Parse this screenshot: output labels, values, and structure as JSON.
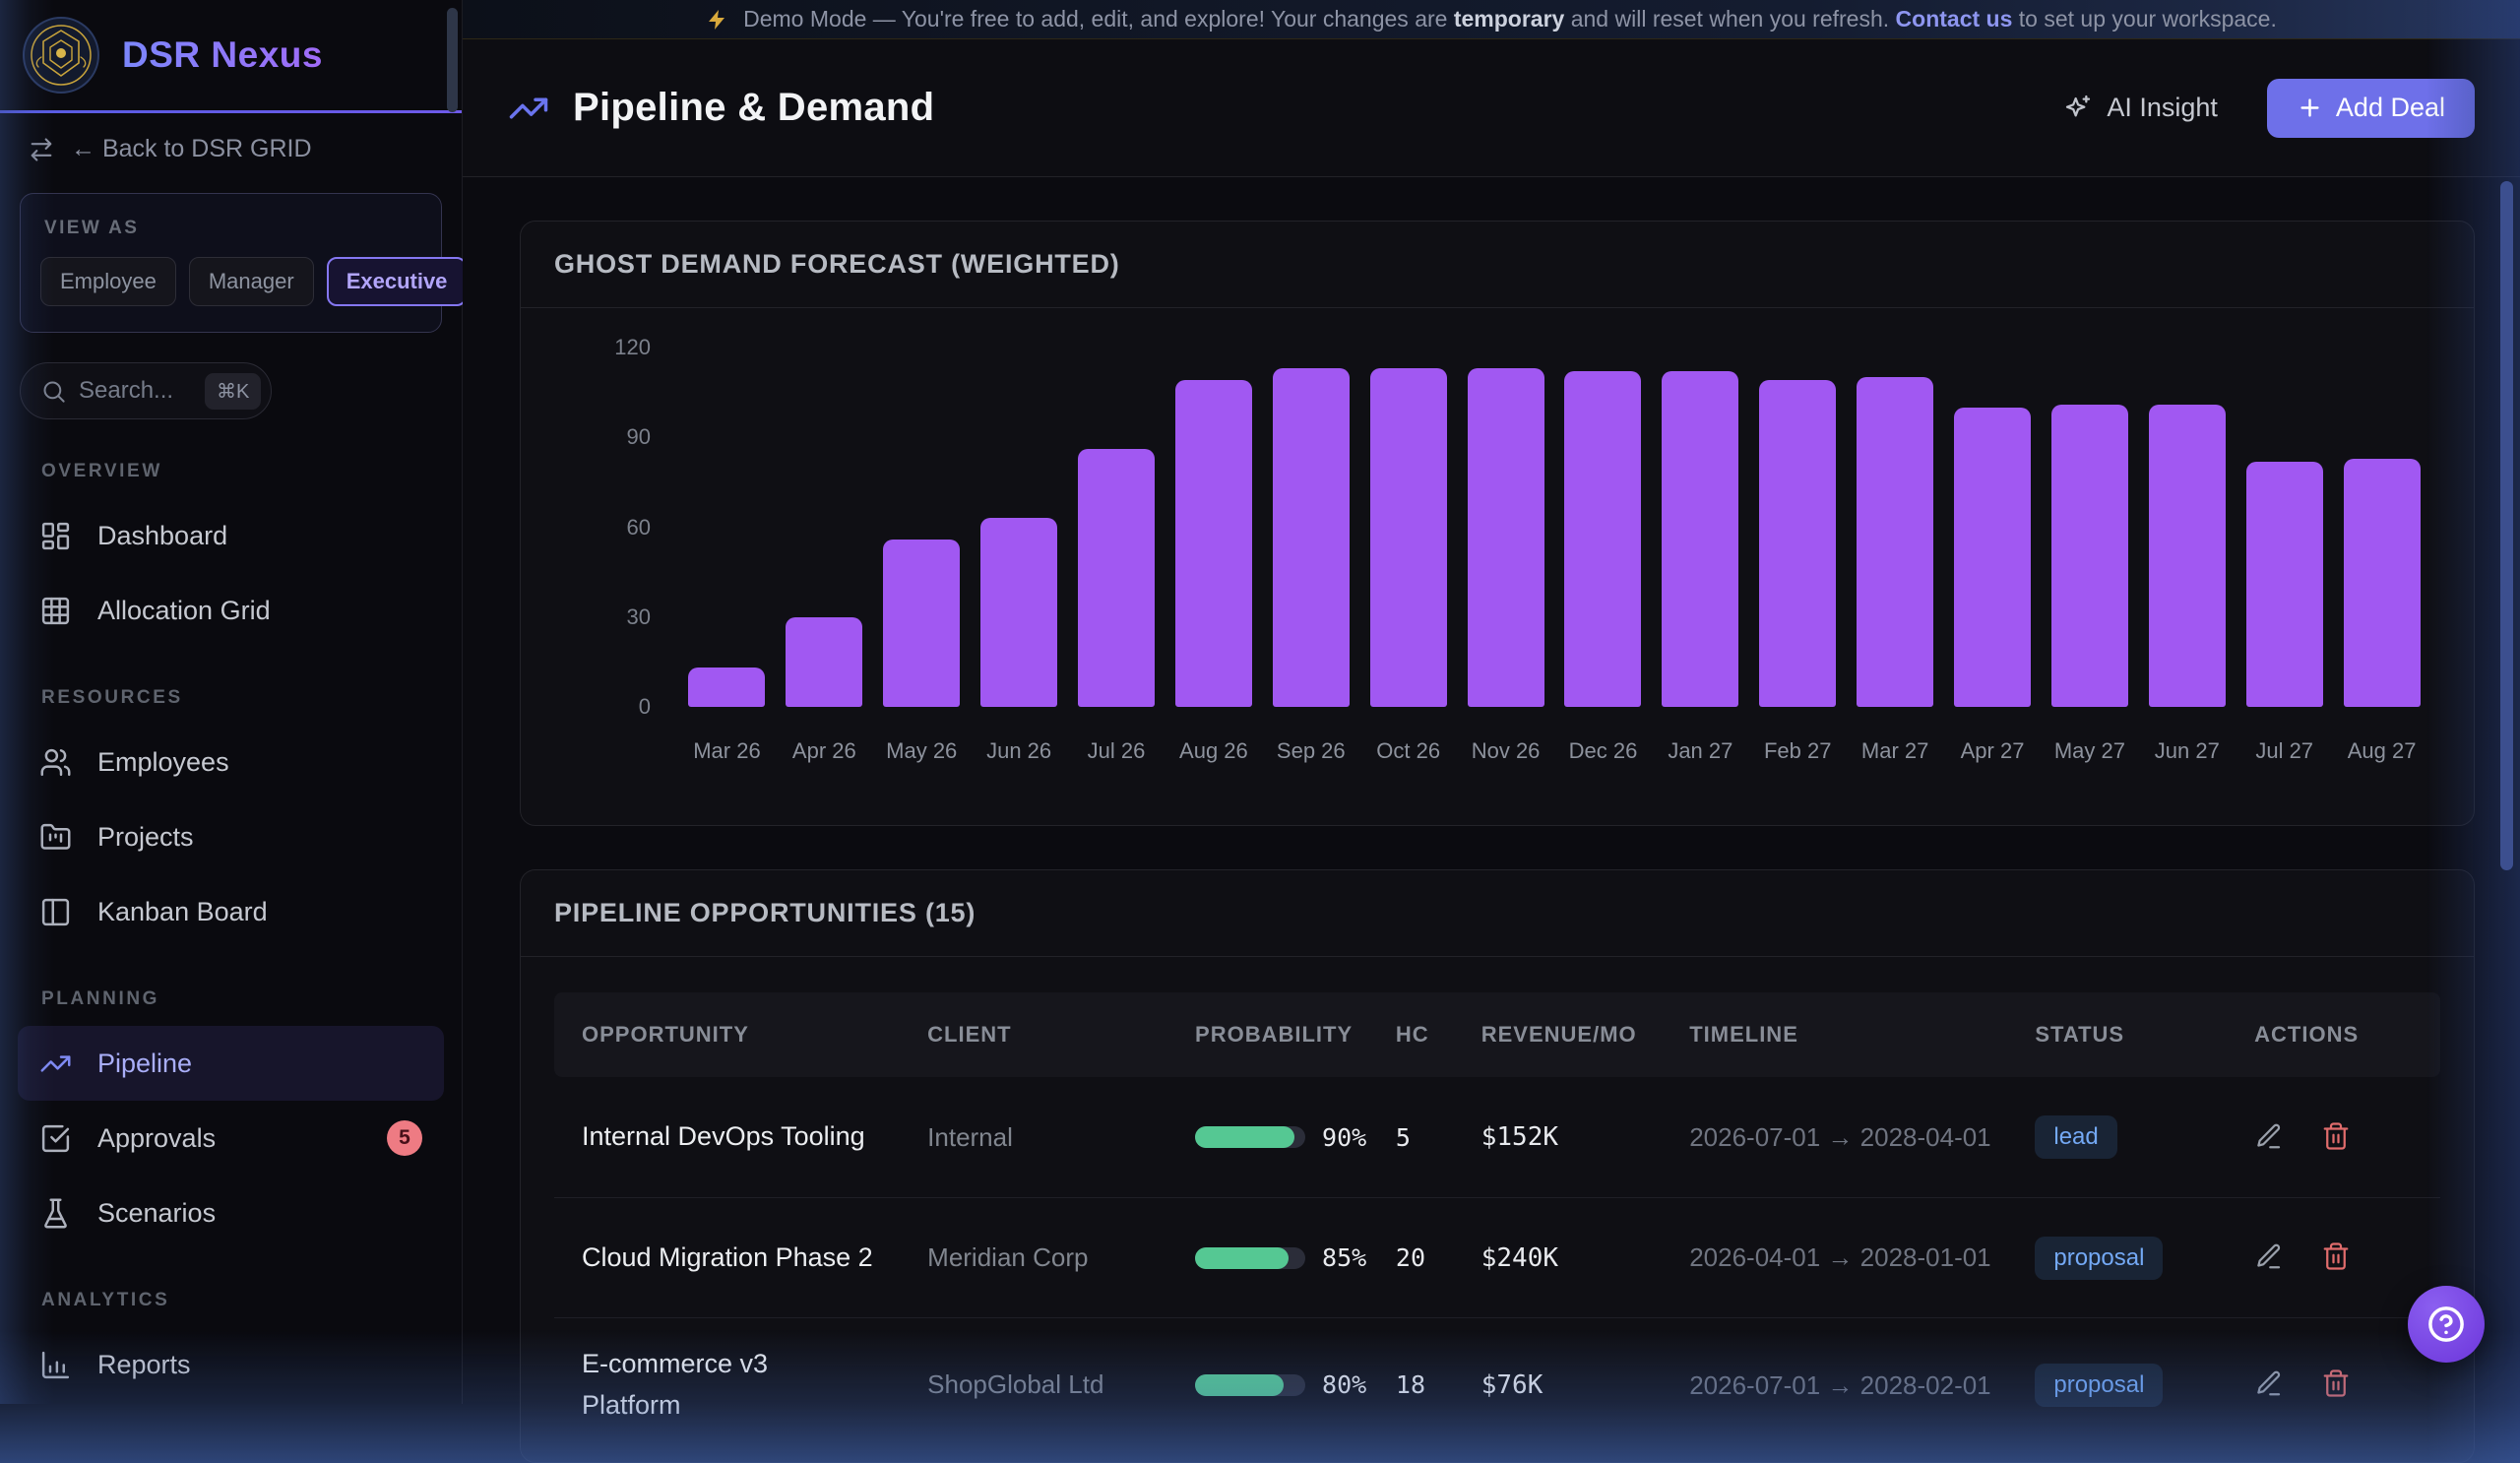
{
  "colors": {
    "accent_purple": "#8577f2",
    "bar_purple": "#a158f2",
    "progress_green": "#55c893",
    "status_blue": "#74a9f5",
    "danger_red": "#e06c6c",
    "add_deal_bg": "#6e70e9"
  },
  "banner": {
    "icon": "zap-icon",
    "prefix": "Demo Mode — You're free to add, edit, and explore! Your changes are ",
    "bold": "temporary",
    "mid": " and will reset when you refresh. ",
    "link": "Contact us",
    "suffix": " to set up your workspace."
  },
  "sidebar": {
    "brand": "DSR Nexus",
    "back_label": "← Back to DSR GRID",
    "view_as": {
      "label": "VIEW AS",
      "options": [
        "Employee",
        "Manager",
        "Executive"
      ],
      "active": "Executive"
    },
    "search": {
      "placeholder": "Search...",
      "shortcut": "⌘K"
    },
    "sections": [
      {
        "label": "OVERVIEW",
        "items": [
          {
            "label": "Dashboard",
            "icon": "layout-dashboard-icon"
          },
          {
            "label": "Allocation Grid",
            "icon": "allocation-grid-icon"
          }
        ]
      },
      {
        "label": "RESOURCES",
        "items": [
          {
            "label": "Employees",
            "icon": "users-icon"
          },
          {
            "label": "Projects",
            "icon": "folder-kanban-icon"
          },
          {
            "label": "Kanban Board",
            "icon": "kanban-icon"
          }
        ]
      },
      {
        "label": "PLANNING",
        "items": [
          {
            "label": "Pipeline",
            "icon": "trending-up-icon",
            "active": true
          },
          {
            "label": "Approvals",
            "icon": "check-square-icon",
            "badge": "5"
          },
          {
            "label": "Scenarios",
            "icon": "flask-icon"
          }
        ]
      },
      {
        "label": "ANALYTICS",
        "items": [
          {
            "label": "Reports",
            "icon": "bar-chart-icon"
          }
        ]
      }
    ]
  },
  "header": {
    "title": "Pipeline & Demand",
    "ai_insight": "AI Insight",
    "add_deal": "Add Deal"
  },
  "chart_card": {
    "title": "GHOST DEMAND FORECAST (WEIGHTED)"
  },
  "chart_data": {
    "type": "bar",
    "title": "GHOST DEMAND FORECAST (WEIGHTED)",
    "categories": [
      "Mar 26",
      "Apr 26",
      "May 26",
      "Jun 26",
      "Jul 26",
      "Aug 26",
      "Sep 26",
      "Oct 26",
      "Nov 26",
      "Dec 26",
      "Jan 27",
      "Feb 27",
      "Mar 27",
      "Apr 27",
      "May 27",
      "Jun 27",
      "Jul 27",
      "Aug 27"
    ],
    "values": [
      13,
      30,
      56,
      63,
      86,
      109,
      113,
      113,
      113,
      112,
      112,
      109,
      110,
      100,
      101,
      101,
      82,
      83
    ],
    "yticks": [
      0,
      30,
      60,
      90,
      120
    ],
    "ylim": [
      0,
      120
    ],
    "xlabel": "",
    "ylabel": "",
    "grid": false,
    "legend": false,
    "bar_color": "#a158f2"
  },
  "pipeline_card": {
    "title": "PIPELINE OPPORTUNITIES (15)",
    "columns": [
      "OPPORTUNITY",
      "CLIENT",
      "PROBABILITY",
      "HC",
      "REVENUE/MO",
      "TIMELINE",
      "STATUS",
      "ACTIONS"
    ],
    "rows": [
      {
        "opportunity": "Internal DevOps Tooling",
        "client": "Internal",
        "probability": 90,
        "hc": "5",
        "revenue_mo": "$152K",
        "timeline": "2026-07-01 → 2028-04-01",
        "status": "lead"
      },
      {
        "opportunity": "Cloud Migration Phase 2",
        "client": "Meridian Corp",
        "probability": 85,
        "hc": "20",
        "revenue_mo": "$240K",
        "timeline": "2026-04-01 → 2028-01-01",
        "status": "proposal"
      },
      {
        "opportunity": "E-commerce v3\nPlatform",
        "client": "ShopGlobal Ltd",
        "probability": 80,
        "hc": "18",
        "revenue_mo": "$76K",
        "timeline": "2026-07-01 → 2028-02-01",
        "status": "proposal"
      }
    ]
  },
  "help": {
    "label": "?"
  }
}
